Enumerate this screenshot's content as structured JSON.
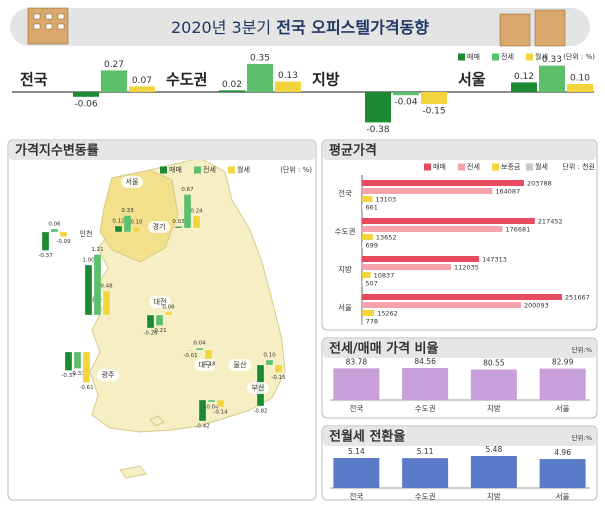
{
  "header": {
    "title_prefix": "2020년 3분기",
    "title_main": "전국 오피스텔가격동향"
  },
  "chart_data": [
    {
      "type": "strip",
      "unit": "(단위 : %)",
      "categories": [
        "전국",
        "수도권",
        "지방",
        "서울"
      ],
      "series": [
        {
          "name": "매매",
          "color": "#1b8a30",
          "values": [
            -0.06,
            0.02,
            -0.38,
            0.12
          ],
          "value_labels": [
            "-0.06",
            "0.02",
            "-0.38",
            "0.12"
          ]
        },
        {
          "name": "전세",
          "color": "#5cbf6a",
          "values": [
            0.27,
            0.35,
            -0.04,
            0.33
          ],
          "value_labels": [
            "0.27",
            "0.35",
            "-0.04",
            "0.33"
          ]
        },
        {
          "name": "월세",
          "color": "#f3d43c",
          "values": [
            0.07,
            0.13,
            -0.15,
            0.1
          ],
          "value_labels": [
            "0.07",
            "0.13",
            "-0.15",
            "0.10"
          ]
        }
      ]
    },
    {
      "type": "map",
      "title": "가격지수변동률",
      "unit": "(단위 : %)",
      "categories": [
        "서울",
        "인천",
        "경기",
        "세종",
        "대전",
        "대구",
        "울산",
        "부산",
        "광주"
      ],
      "series": [
        {
          "name": "매매",
          "color": "#1b8a30",
          "values": [
            0.12,
            -0.37,
            0.03,
            1.0,
            -0.26,
            -0.01,
            -0.82,
            -0.42,
            -0.37
          ],
          "value_labels": [
            "0.12",
            "-0.37",
            "0.03",
            "1.00",
            "-0.26",
            "-0.01",
            "-0.82",
            "-0.42",
            "-0.37"
          ]
        },
        {
          "name": "전세",
          "color": "#5cbf6a",
          "values": [
            0.33,
            0.06,
            0.67,
            1.21,
            -0.21,
            0.04,
            0.1,
            -0.04,
            -0.33
          ],
          "value_labels": [
            "0.33",
            "0.06",
            "0.67",
            "1.21",
            "-0.21",
            "0.04",
            "0.10",
            "-0.04",
            "-0.33"
          ]
        },
        {
          "name": "월세",
          "color": "#f3d43c",
          "values": [
            0.1,
            -0.09,
            0.24,
            0.48,
            0.06,
            -0.18,
            -0.15,
            -0.14,
            -0.61
          ],
          "value_labels": [
            "0.10",
            "-0.09",
            "0.24",
            "0.48",
            "0.06",
            "-0.18",
            "-0.15",
            "-0.14",
            "-0.61"
          ]
        }
      ]
    },
    {
      "type": "hbar",
      "title": "평균가격",
      "unit": "단위 : 천원",
      "categories": [
        "전국",
        "수도권",
        "지방",
        "서울"
      ],
      "series": [
        {
          "name": "매매",
          "color": "#e84a5f",
          "values": [
            203788,
            217452,
            147313,
            251667
          ]
        },
        {
          "name": "전세",
          "color": "#f4a3ab",
          "values": [
            164087,
            176681,
            112035,
            200093
          ]
        },
        {
          "name": "보증금",
          "color": "#f3d43c",
          "values": [
            13103,
            13652,
            10837,
            15262
          ]
        },
        {
          "name": "월세",
          "color": "#c8c8c8",
          "values": [
            661,
            699,
            507,
            778
          ]
        }
      ]
    },
    {
      "type": "bar",
      "title": "전세/매매 가격 비율",
      "unit": "단위:%",
      "categories": [
        "전국",
        "수도권",
        "지방",
        "서울"
      ],
      "values": [
        83.78,
        84.56,
        80.55,
        82.99
      ],
      "color": "#c7a0d9"
    },
    {
      "type": "bar",
      "title": "전월세 전환율",
      "unit": "단위:%",
      "categories": [
        "전국",
        "수도권",
        "지방",
        "서울"
      ],
      "values": [
        5.14,
        5.11,
        5.48,
        4.96
      ],
      "color": "#5b7bc9"
    }
  ]
}
